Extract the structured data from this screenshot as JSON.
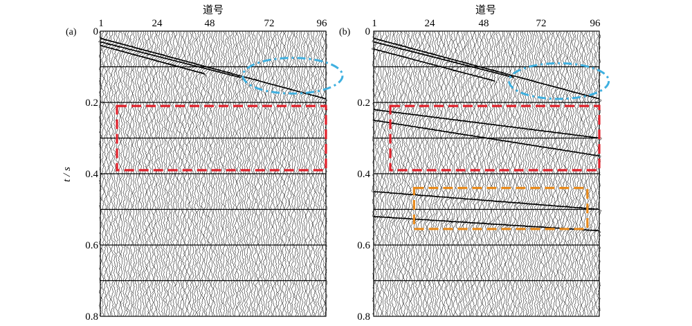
{
  "panels": [
    {
      "id": "a",
      "label": "(a)",
      "x_title": "道号",
      "x_ticks": [
        "1",
        "24",
        "48",
        "72",
        "96"
      ],
      "x_tick_values": [
        1,
        24,
        48,
        72,
        96
      ],
      "y_ticks": [
        "0",
        "0.2",
        "0.4",
        "0.6",
        "0.8"
      ],
      "y_tick_values": [
        0,
        0.2,
        0.4,
        0.6,
        0.8
      ],
      "y_title": "t / s",
      "events": [
        {
          "t0": 0.02,
          "t1": 0.19,
          "x1": 96
        },
        {
          "t0": 0.03,
          "t1": 0.13,
          "x1": 60
        },
        {
          "t0": 0.04,
          "t1": 0.12,
          "x1": 45
        }
      ],
      "annotations": [
        {
          "shape": "ellipse",
          "color": "#3fb0e0",
          "trace_center": 82,
          "t_center": 0.125,
          "trace_radius": 21,
          "t_radius": 0.05
        },
        {
          "shape": "rect",
          "color": "#e0202a",
          "trace_start": 8,
          "trace_end": 96,
          "t_start": 0.21,
          "t_end": 0.39
        }
      ]
    },
    {
      "id": "b",
      "label": "(b)",
      "x_title": "道号",
      "x_ticks": [
        "1",
        "24",
        "48",
        "72",
        "96"
      ],
      "x_tick_values": [
        1,
        24,
        48,
        72,
        96
      ],
      "y_ticks": [
        "0",
        "0.2",
        "0.4",
        "0.6",
        "0.8"
      ],
      "y_tick_values": [
        0,
        0.2,
        0.4,
        0.6,
        0.8
      ],
      "y_title": "",
      "events": [
        {
          "t0": 0.02,
          "t1": 0.19,
          "x1": 96
        },
        {
          "t0": 0.03,
          "t1": 0.13,
          "x1": 60
        },
        {
          "t0": 0.05,
          "t1": 0.14,
          "x1": 52
        },
        {
          "t0": 0.22,
          "t1": 0.3,
          "x1": 96
        },
        {
          "t0": 0.25,
          "t1": 0.35,
          "x1": 96
        },
        {
          "t0": 0.45,
          "t1": 0.5,
          "x1": 96
        },
        {
          "t0": 0.52,
          "t1": 0.56,
          "x1": 96
        }
      ],
      "annotations": [
        {
          "shape": "ellipse",
          "color": "#3fb0e0",
          "trace_center": 79,
          "t_center": 0.14,
          "trace_radius": 21,
          "t_radius": 0.05
        },
        {
          "shape": "rect",
          "color": "#e0202a",
          "trace_start": 8,
          "trace_end": 96,
          "t_start": 0.21,
          "t_end": 0.39
        },
        {
          "shape": "rect",
          "color": "#e88a1c",
          "trace_start": 18,
          "trace_end": 91,
          "t_start": 0.44,
          "t_end": 0.555
        }
      ]
    }
  ],
  "horizontal_gridlines_t": [
    0.1,
    0.2,
    0.3,
    0.4,
    0.5,
    0.6,
    0.7
  ],
  "colors": {
    "trace": "#000000",
    "background": "#ffffff"
  }
}
